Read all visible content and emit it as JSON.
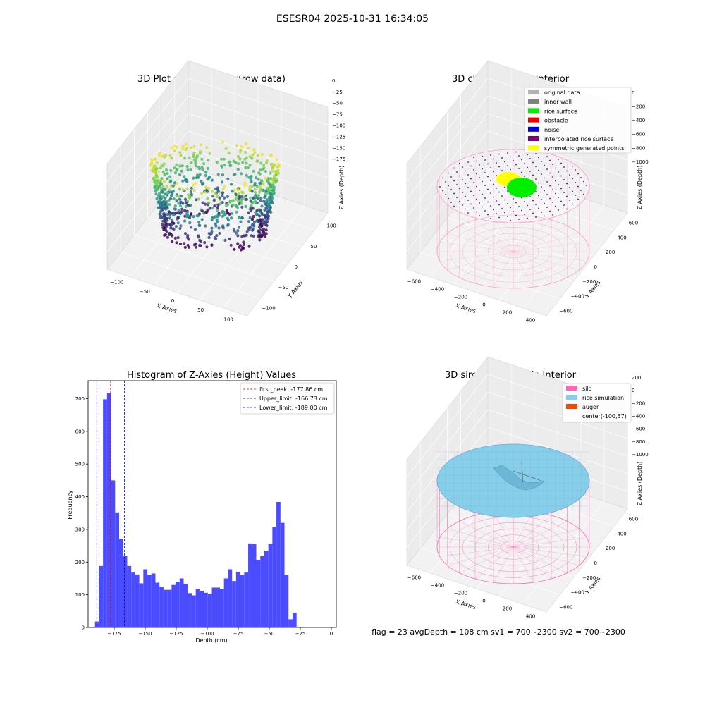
{
  "figure": {
    "suptitle": "ESESR04 2025-10-31 16:34:05",
    "status_line": "flag = 23  avgDepth = 108 cm  sv1 = 700~2300  sv2 = 700~2300"
  },
  "panel_raw": {
    "title": "3D Plot of Silo Interior(row data)",
    "xlabel": "X Axies",
    "ylabel": "Y Axies",
    "zlabel": "Z Axies (Depth)",
    "xticks": [
      "−100",
      "−50",
      "0",
      "50",
      "100"
    ],
    "yticks": [
      "−100",
      "−50",
      "0",
      "50",
      "100"
    ],
    "zticks": [
      "0",
      "−25",
      "−50",
      "−75",
      "−100",
      "−125",
      "−150",
      "−175"
    ]
  },
  "panel_classify": {
    "title": "3D classify of Silo Interior",
    "xlabel": "X Axies",
    "ylabel": "Y Axies",
    "zlabel": "Z Axies (Depth)",
    "xticks": [
      "−600",
      "−400",
      "−200",
      "0",
      "200",
      "400"
    ],
    "yticks": [
      "−600",
      "−400",
      "−200",
      "0",
      "200",
      "400",
      "600"
    ],
    "zticks": [
      "0",
      "−200",
      "−400",
      "−600",
      "−800",
      "−1000"
    ],
    "legend": [
      {
        "label": "original data",
        "color": "#b3b3b3"
      },
      {
        "label": "inner wall",
        "color": "#808080"
      },
      {
        "label": "rice surface",
        "color": "#00ee00"
      },
      {
        "label": "obstacle",
        "color": "#ee0000"
      },
      {
        "label": "noise",
        "color": "#0000dd"
      },
      {
        "label": "interpolated rice surface",
        "color": "#800080"
      },
      {
        "label": "symmetric generated points",
        "color": "#ffff00"
      }
    ]
  },
  "panel_sim": {
    "title": "3D simulation of Silo Interior",
    "xlabel": "X Axies",
    "ylabel": "Y Axies",
    "zlabel": "Z Axies (Depth)",
    "xticks": [
      "−600",
      "−400",
      "−200",
      "0",
      "200",
      "400"
    ],
    "yticks": [
      "−600",
      "−400",
      "−200",
      "0",
      "200",
      "400",
      "600"
    ],
    "zticks": [
      "200",
      "0",
      "−200",
      "−400",
      "−600",
      "−800",
      "−1000"
    ],
    "legend": [
      {
        "label": "silo",
        "color": "#ff69b4"
      },
      {
        "label": "rice simulation",
        "color": "#87ceeb"
      },
      {
        "label": "auger",
        "color": "#ff4500"
      },
      {
        "label": "center(-100,37)",
        "color": ""
      }
    ]
  },
  "chart_data": {
    "type": "bar",
    "title": "Histogram of Z-Axies (Height) Values",
    "xlabel": "Depth (cm)",
    "ylabel": "Frequency",
    "xlim": [
      -196,
      4
    ],
    "ylim": [
      0,
      755
    ],
    "xticks": [
      -175,
      -150,
      -125,
      -100,
      -75,
      -50,
      -25,
      0
    ],
    "xtick_labels": [
      "−175",
      "−150",
      "−125",
      "−100",
      "−75",
      "−50",
      "−25",
      "0"
    ],
    "yticks": [
      0,
      100,
      200,
      300,
      400,
      500,
      600,
      700
    ],
    "bin_start": -190.5,
    "bin_width": 3.25,
    "bar_color": "#4b4bff",
    "values": [
      18,
      188,
      698,
      718,
      450,
      352,
      270,
      218,
      188,
      168,
      162,
      135,
      178,
      160,
      165,
      137,
      125,
      115,
      115,
      130,
      140,
      150,
      132,
      105,
      98,
      118,
      112,
      106,
      102,
      122,
      122,
      118,
      150,
      178,
      142,
      170,
      160,
      168,
      257,
      255,
      207,
      218,
      235,
      255,
      307,
      384,
      320,
      160,
      25,
      45
    ],
    "vlines": [
      {
        "label": "first_peak: -177.86 cm",
        "x": -177.86,
        "color": "#dd0000"
      },
      {
        "label": "Upper_limit: -166.73 cm",
        "x": -166.73,
        "color": "#0000cc"
      },
      {
        "label": "Lower_limit: -189.00 cm",
        "x": -189.0,
        "color": "#0000cc"
      }
    ],
    "legend_position": "upper right"
  }
}
